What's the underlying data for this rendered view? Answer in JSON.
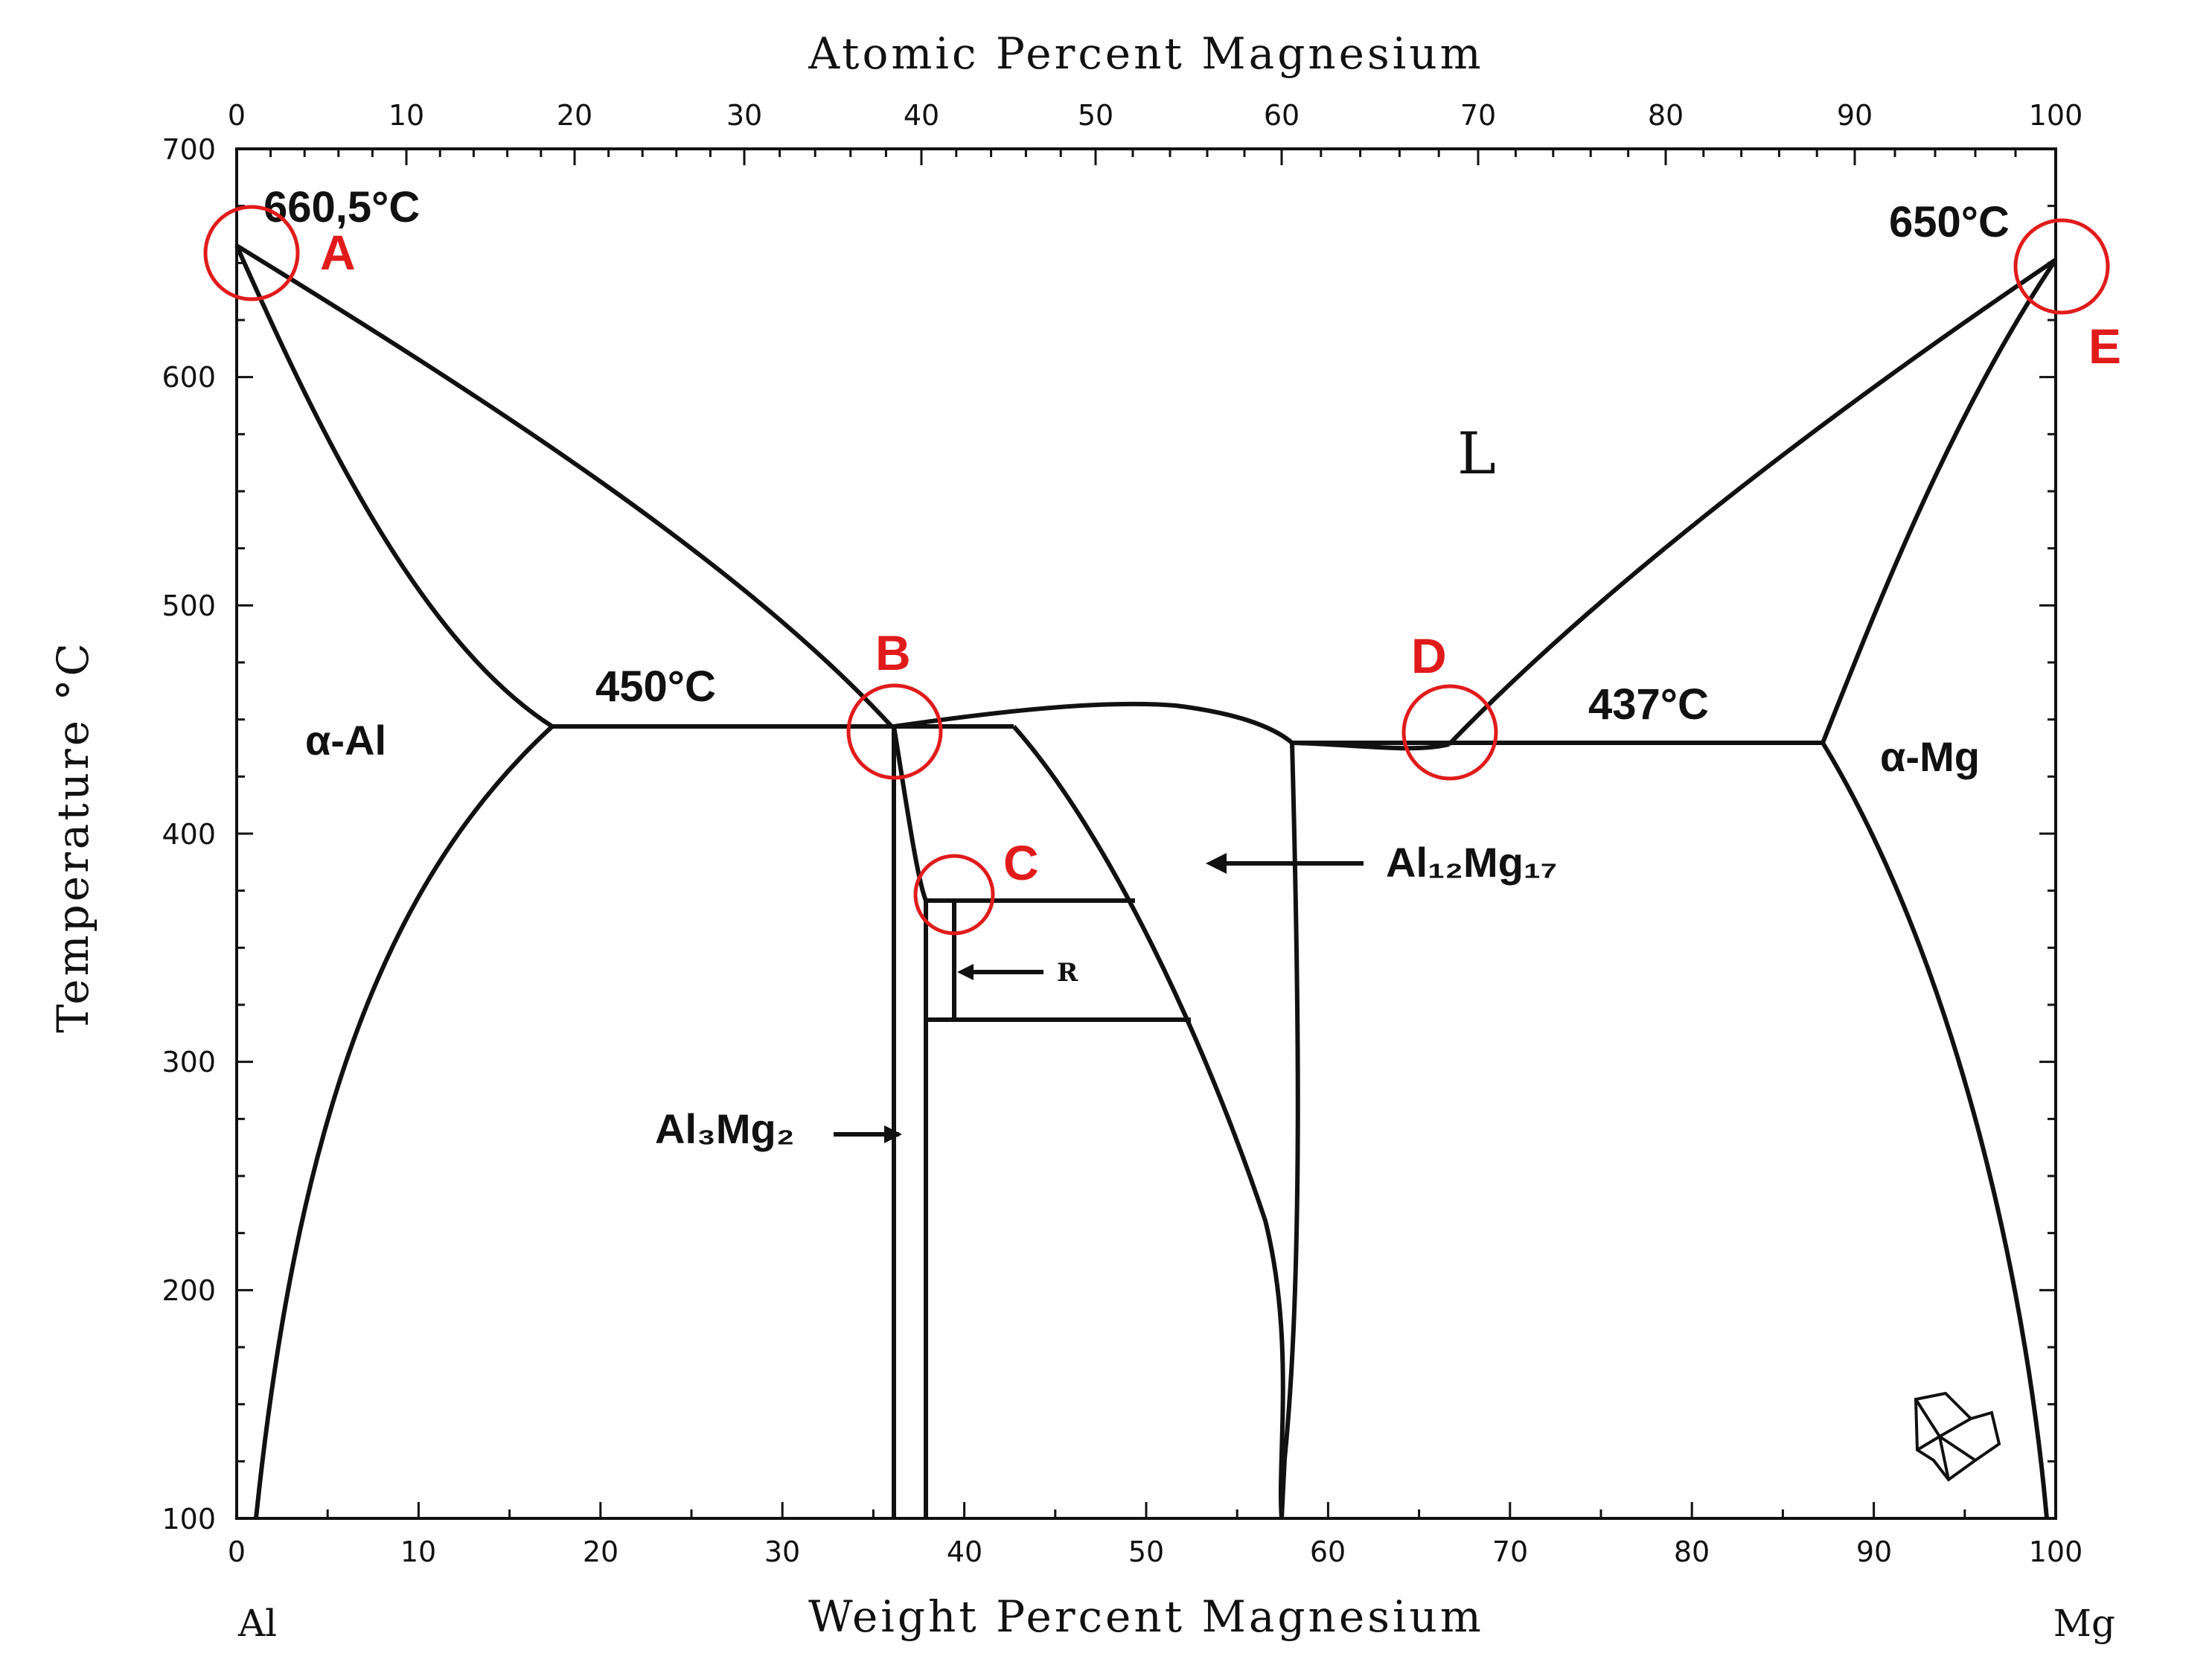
{
  "axes": {
    "top_title": "Atomic Percent Magnesium",
    "bottom_title": "Weight Percent Magnesium",
    "left_title": "Temperature °C",
    "top_ticks": [
      "0",
      "10",
      "20",
      "30",
      "40",
      "50",
      "60",
      "70",
      "80",
      "90",
      "100"
    ],
    "bottom_ticks": [
      "0",
      "10",
      "20",
      "30",
      "40",
      "50",
      "60",
      "70",
      "80",
      "90",
      "100"
    ],
    "left_ticks": [
      "700",
      "600",
      "500",
      "400",
      "300",
      "200",
      "100"
    ],
    "left_element": "Al",
    "right_element": "Mg"
  },
  "labels": {
    "al_melting": "660,5°C",
    "mg_melting": "650°C",
    "eutectic_left": "450°C",
    "eutectic_right": "437°C",
    "liquid": "L",
    "alpha_al": "α-Al",
    "alpha_mg": "α-Mg",
    "al3mg2": "Al₃Mg₂",
    "al12mg17": "Al₁₂Mg₁₇",
    "r_phase": "R"
  },
  "markers": [
    "A",
    "B",
    "C",
    "D",
    "E"
  ],
  "colors": {
    "marker": "#e11b1b",
    "line": "#111111"
  }
}
